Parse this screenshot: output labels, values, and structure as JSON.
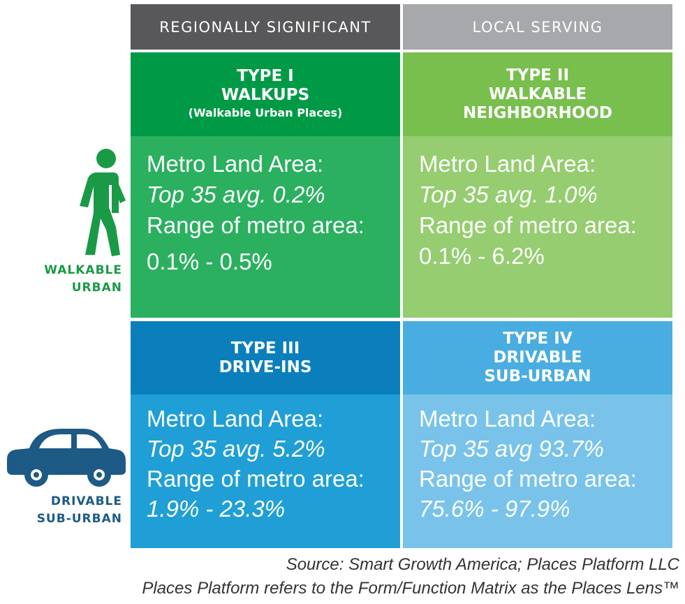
{
  "columns": {
    "regional": "REGIONALLY SIGNIFICANT",
    "local": "LOCAL SERVING"
  },
  "rows": {
    "walkable": {
      "line1": "WALKABLE",
      "line2": "URBAN"
    },
    "drivable": {
      "line1": "DRIVABLE",
      "line2": "SUB-URBAN"
    }
  },
  "cells": {
    "type1": {
      "line1": "TYPE I",
      "line2": "WALKUPS",
      "sub": "(Walkable Urban Places)",
      "metro": "Metro Land Area:",
      "avg": "Top 35 avg. 0.2%",
      "range_label": "Range of metro area:",
      "range": "0.1% - 0.5%"
    },
    "type2": {
      "line1": "TYPE II",
      "line2": "WALKABLE",
      "line3": "NEIGHBORHOOD",
      "metro": "Metro Land Area:",
      "avg": "Top 35 avg. 1.0%",
      "range_label": "Range of metro area:",
      "range": "0.1% - 6.2%"
    },
    "type3": {
      "line1": "TYPE III",
      "line2": "DRIVE-INS",
      "metro": "Metro Land Area:",
      "avg": "Top 35 avg. 5.2%",
      "range_label": "Range of metro area:",
      "range": "1.9% - 23.3%"
    },
    "type4": {
      "line1": "TYPE IV",
      "line2": "DRIVABLE",
      "line3": "SUB-URBAN",
      "metro": "Metro Land Area:",
      "avg": "Top 35 avg 93.7%",
      "range_label": "Range of metro area:",
      "range": "75.6% - 97.9%"
    }
  },
  "source": {
    "line1": "Source: Smart Growth America; Places Platform LLC",
    "line2": "Places Platform refers to the Form/Function Matrix as the Places Lens™"
  },
  "icons": {
    "walker": "walking-person-icon",
    "car": "car-icon"
  },
  "colors": {
    "header_regional": "#58585a",
    "header_local": "#a7a8ab",
    "type1_head": "#009a46",
    "type1_body": "#2ab05f",
    "type2_head": "#78bf4e",
    "type2_body": "#95cd70",
    "type3_head": "#0a7fbc",
    "type3_body": "#1f9fd5",
    "type4_head": "#49ade1",
    "type4_body": "#79c3ea",
    "walkable_label": "#1a9a46",
    "drivable_label": "#1d5a85"
  }
}
